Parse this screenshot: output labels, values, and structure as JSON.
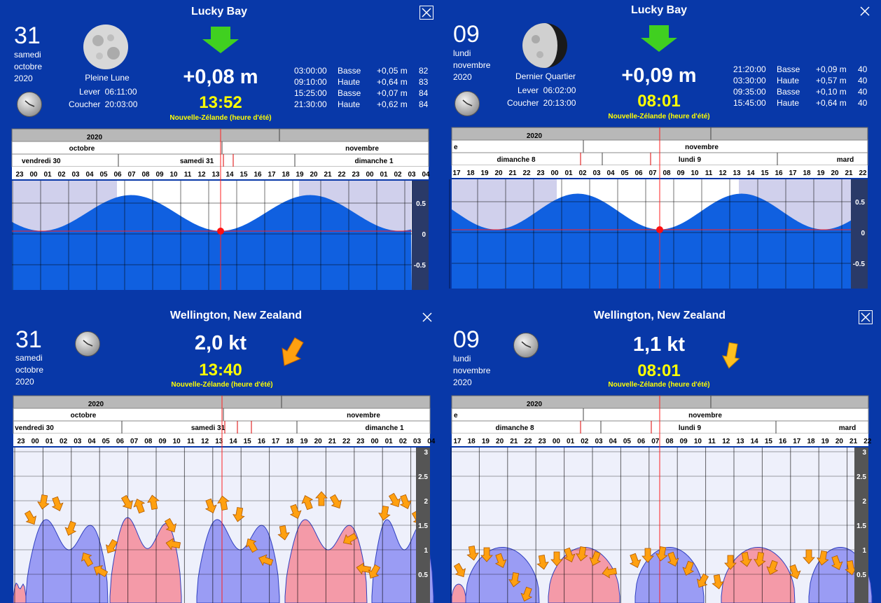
{
  "panels": {
    "tl": {
      "title": "Lucky Bay",
      "day": "31",
      "weekday": "samedi",
      "month": "octobre",
      "year": "2020",
      "moon_phase": "Pleine Lune",
      "rise_label": "Lever",
      "rise_time": "06:11:00",
      "set_label": "Coucher",
      "set_time": "20:03:00",
      "value": "+0,08 m",
      "time": "13:52",
      "timezone": "Nouvelle-Zélande (heure d'été)",
      "tides": [
        {
          "t": "03:00:00",
          "type": "Basse",
          "h": "+0,05 m",
          "c": "82"
        },
        {
          "t": "09:10:00",
          "type": "Haute",
          "h": "+0,64 m",
          "c": "83"
        },
        {
          "t": "15:25:00",
          "type": "Basse",
          "h": "+0,07 m",
          "c": "84"
        },
        {
          "t": "21:30:00",
          "type": "Haute",
          "h": "+0,62 m",
          "c": "84"
        }
      ],
      "timeline": {
        "year": "2020",
        "months": [
          "octobre",
          "novembre"
        ],
        "days": [
          "vendredi 30",
          "samedi 31",
          "dimanche 1"
        ],
        "hours": [
          "23",
          "00",
          "01",
          "02",
          "03",
          "04",
          "05",
          "06",
          "07",
          "08",
          "09",
          "10",
          "11",
          "12",
          "13",
          "14",
          "15",
          "16",
          "17",
          "18",
          "19",
          "20",
          "21",
          "22",
          "23",
          "00",
          "01",
          "02",
          "03",
          "04"
        ]
      },
      "axis": [
        "0.5",
        "0",
        "-0.5"
      ]
    },
    "tr": {
      "title": "Lucky Bay",
      "day": "09",
      "weekday": "lundi",
      "month": "novembre",
      "year": "2020",
      "moon_phase": "Dernier Quartier",
      "rise_label": "Lever",
      "rise_time": "06:02:00",
      "set_label": "Coucher",
      "set_time": "20:13:00",
      "value": "+0,09 m",
      "time": "08:01",
      "timezone": "Nouvelle-Zélande (heure d'été)",
      "tides": [
        {
          "t": "21:20:00",
          "type": "Basse",
          "h": "+0,09 m",
          "c": "40"
        },
        {
          "t": "03:30:00",
          "type": "Haute",
          "h": "+0,57 m",
          "c": "40"
        },
        {
          "t": "09:35:00",
          "type": "Basse",
          "h": "+0,10 m",
          "c": "40"
        },
        {
          "t": "15:45:00",
          "type": "Haute",
          "h": "+0,64 m",
          "c": "40"
        }
      ],
      "timeline": {
        "year": "2020",
        "months": [
          "e",
          "novembre"
        ],
        "days": [
          "dimanche 8",
          "lundi 9",
          "mard"
        ],
        "hours": [
          "17",
          "18",
          "19",
          "20",
          "21",
          "22",
          "23",
          "00",
          "01",
          "02",
          "03",
          "04",
          "05",
          "06",
          "07",
          "08",
          "09",
          "10",
          "11",
          "12",
          "13",
          "14",
          "15",
          "16",
          "17",
          "18",
          "19",
          "20",
          "21",
          "22"
        ]
      },
      "axis": [
        "0.5",
        "0",
        "-0.5"
      ]
    },
    "bl": {
      "title": "Wellington, New Zealand",
      "day": "31",
      "weekday": "samedi",
      "month": "octobre",
      "year": "2020",
      "value": "2,0 kt",
      "time": "13:40",
      "timezone": "Nouvelle-Zélande (heure d'été)",
      "timeline": {
        "year": "2020",
        "months": [
          "octobre",
          "novembre"
        ],
        "days": [
          "vendredi 30",
          "samedi 31",
          "dimanche 1"
        ],
        "hours": [
          "23",
          "00",
          "01",
          "02",
          "03",
          "04",
          "05",
          "06",
          "07",
          "08",
          "09",
          "10",
          "11",
          "12",
          "13",
          "14",
          "15",
          "16",
          "17",
          "18",
          "19",
          "20",
          "21",
          "22",
          "23",
          "00",
          "01",
          "02",
          "03",
          "04"
        ]
      },
      "axis": [
        "3",
        "2.5",
        "2",
        "1.5",
        "1",
        "0.5"
      ]
    },
    "br": {
      "title": "Wellington, New Zealand",
      "day": "09",
      "weekday": "lundi",
      "month": "novembre",
      "year": "2020",
      "value": "1,1 kt",
      "time": "08:01",
      "timezone": "Nouvelle-Zélande (heure d'été)",
      "timeline": {
        "year": "2020",
        "months": [
          "e",
          "novembre"
        ],
        "days": [
          "dimanche 8",
          "lundi 9",
          "mard"
        ],
        "hours": [
          "17",
          "18",
          "19",
          "20",
          "21",
          "22",
          "23",
          "00",
          "01",
          "02",
          "03",
          "04",
          "05",
          "06",
          "07",
          "08",
          "09",
          "10",
          "11",
          "12",
          "13",
          "14",
          "15",
          "16",
          "17",
          "18",
          "19",
          "20",
          "21",
          "22"
        ]
      },
      "axis": [
        "3",
        "2.5",
        "2",
        "1.5",
        "1",
        "0.5"
      ]
    }
  },
  "colors": {
    "background": "#0838a8",
    "water": "#1060e0",
    "flood": "#f49aa8",
    "ebb": "#9a9cf4",
    "arrow": "#ffa010",
    "down_arrow": "#40d020",
    "highlight": "#ffff00"
  },
  "icons": {
    "close": "close-icon",
    "clock": "clock-icon",
    "moon": "moon-icon",
    "direction": "arrow-icon"
  }
}
